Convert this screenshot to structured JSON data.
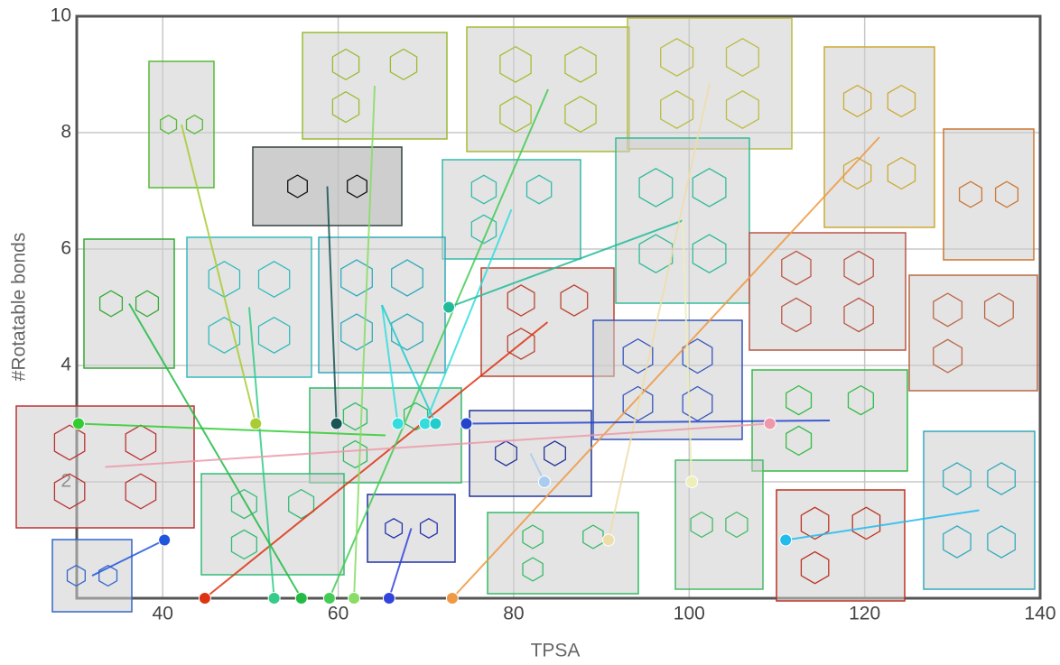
{
  "chart_data": {
    "type": "scatter",
    "x_label": "TPSA",
    "y_label": "#Rotatable bonds",
    "x": [
      30.4,
      40.2,
      44.8,
      50.6,
      52.7,
      55.8,
      59.0,
      59.8,
      61.8,
      65.8,
      66.8,
      69.9,
      71.1,
      72.6,
      73.0,
      74.6,
      83.5,
      90.8,
      100.3,
      109.2,
      111.0
    ],
    "y": [
      3,
      1,
      0,
      3,
      0,
      0,
      0,
      3,
      0,
      0,
      3,
      3,
      3,
      5,
      0,
      3,
      2,
      1,
      2,
      3,
      1
    ],
    "colors": [
      "#33cc33",
      "#2255dd",
      "#dd3311",
      "#aacc33",
      "#33cc88",
      "#22bb44",
      "#44cc55",
      "#1a5555",
      "#88dd66",
      "#3344dd",
      "#33dddd",
      "#33dddd",
      "#22cccc",
      "#22bb99",
      "#ee9944",
      "#2244cc",
      "#aaccee",
      "#eeddaa",
      "#eeeebb",
      "#ee99aa",
      "#22bbee"
    ],
    "xlim": [
      30.2,
      140
    ],
    "ylim": [
      0,
      10
    ],
    "xticks": [
      40,
      60,
      80,
      100,
      120,
      140
    ],
    "yticks": [
      2,
      4,
      6,
      8,
      10
    ],
    "grid": true
  }
}
